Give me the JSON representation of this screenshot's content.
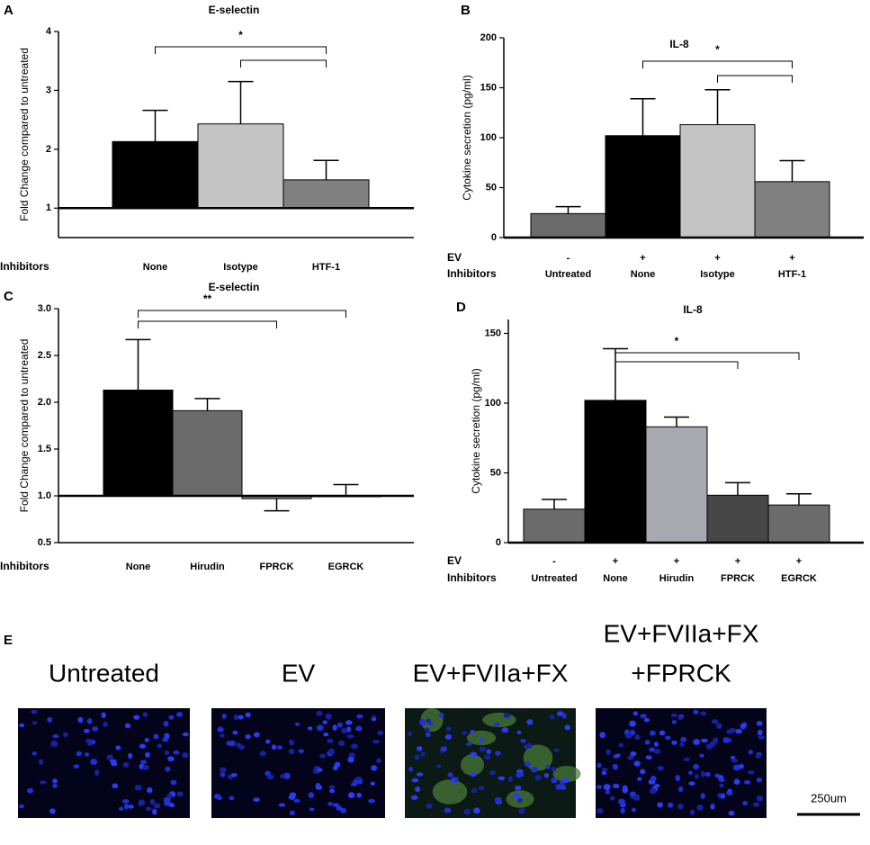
{
  "chart_data": [
    {
      "type": "bar",
      "panel": "A",
      "title": "E-selectin",
      "ylabel": "Fold Change compared to untreated",
      "xlabel": "Inhibitors",
      "categories": [
        "None",
        "Isotype",
        "HTF-1"
      ],
      "x_rows": [],
      "values": [
        2.13,
        2.43,
        1.48
      ],
      "errors": [
        0.53,
        0.72,
        0.33
      ],
      "colors": [
        "#000000",
        "#c4c4c4",
        "#808080"
      ],
      "baseline": 1,
      "ylim": [
        0.5,
        4
      ],
      "yticks": [
        1,
        2,
        3,
        4
      ],
      "grid": false,
      "brackets": [
        {
          "label": "*",
          "categories": [
            "None",
            "HTF-1"
          ]
        },
        {
          "categories": [
            "Isotype",
            "HTF-1"
          ]
        }
      ]
    },
    {
      "type": "bar",
      "panel": "B",
      "title": "IL-8",
      "ylabel": "Cytokine secretion (pg/ml)",
      "xlabel": "Inhibitors",
      "categories": [
        "Untreated",
        "None",
        "Isotype",
        "HTF-1"
      ],
      "x_rows": [
        {
          "label": "EV",
          "values": [
            "-",
            "+",
            "+",
            "+"
          ]
        }
      ],
      "values": [
        24,
        102,
        113,
        56
      ],
      "errors": [
        7,
        37,
        35,
        21
      ],
      "colors": [
        "#6b6b6b",
        "#000000",
        "#c4c4c4",
        "#808080"
      ],
      "baseline": 0,
      "ylim": [
        0,
        200
      ],
      "yticks": [
        0,
        50,
        100,
        150,
        200
      ],
      "grid": false,
      "brackets": [
        {
          "label": "*",
          "categories": [
            "None",
            "HTF-1"
          ]
        },
        {
          "categories": [
            "Isotype",
            "HTF-1"
          ]
        }
      ]
    },
    {
      "type": "bar",
      "panel": "C",
      "title": "E-selectin",
      "ylabel": "Fold Change compared to untreated",
      "xlabel": "Inhibitors",
      "categories": [
        "None",
        "Hirudin",
        "FPRCK",
        "EGRCK"
      ],
      "x_rows": [],
      "values": [
        2.13,
        1.91,
        0.97,
        1.0
      ],
      "errors": [
        0.54,
        0.13,
        0.13,
        0.12
      ],
      "colors": [
        "#000000",
        "#6b6b6b",
        "#808080",
        "#808080"
      ],
      "baseline": 1,
      "ylim": [
        0.5,
        3
      ],
      "yticks": [
        0.5,
        {
          "value": 1,
          "label": "1.0"
        },
        1.5,
        {
          "value": 2,
          "label": "2.0"
        },
        2.5,
        {
          "value": 3,
          "label": "3.0"
        }
      ],
      "grid": false,
      "brackets": [
        {
          "label": "**",
          "categories": [
            "None",
            "FPRCK"
          ]
        },
        {
          "categories": [
            "None",
            "EGRCK"
          ]
        }
      ]
    },
    {
      "type": "bar",
      "panel": "D",
      "title": "IL-8",
      "ylabel": "Cytokine secretion (pg/ml)",
      "xlabel": "Inhibitors",
      "categories": [
        "Untreated",
        "None",
        "Hirudin",
        "FPRCK",
        "EGRCK"
      ],
      "x_rows": [
        {
          "label": "EV",
          "values": [
            "-",
            "+",
            "+",
            "+",
            "+"
          ]
        }
      ],
      "values": [
        24,
        102,
        83,
        34,
        27
      ],
      "errors": [
        7,
        37,
        7,
        9,
        8
      ],
      "colors": [
        "#6b6b6b",
        "#000000",
        "#a9a9b1",
        "#474747",
        "#6b6b6b"
      ],
      "baseline": 0,
      "ylim": [
        0,
        160
      ],
      "yticks": [
        0,
        50,
        100,
        150
      ],
      "grid": false,
      "brackets": [
        {
          "label": "*",
          "categories": [
            "None",
            "FPRCK"
          ]
        },
        {
          "categories": [
            "None",
            "EGRCK"
          ]
        }
      ]
    }
  ],
  "panel_e": {
    "panel": "E",
    "images": [
      {
        "label": [
          "Untreated"
        ]
      },
      {
        "label": [
          "EV"
        ]
      },
      {
        "label": [
          "EV+FVIIa+FX"
        ]
      },
      {
        "label": [
          "EV+FVIIa+FX",
          "+FPRCK"
        ]
      }
    ],
    "scale_bar": "250um"
  }
}
